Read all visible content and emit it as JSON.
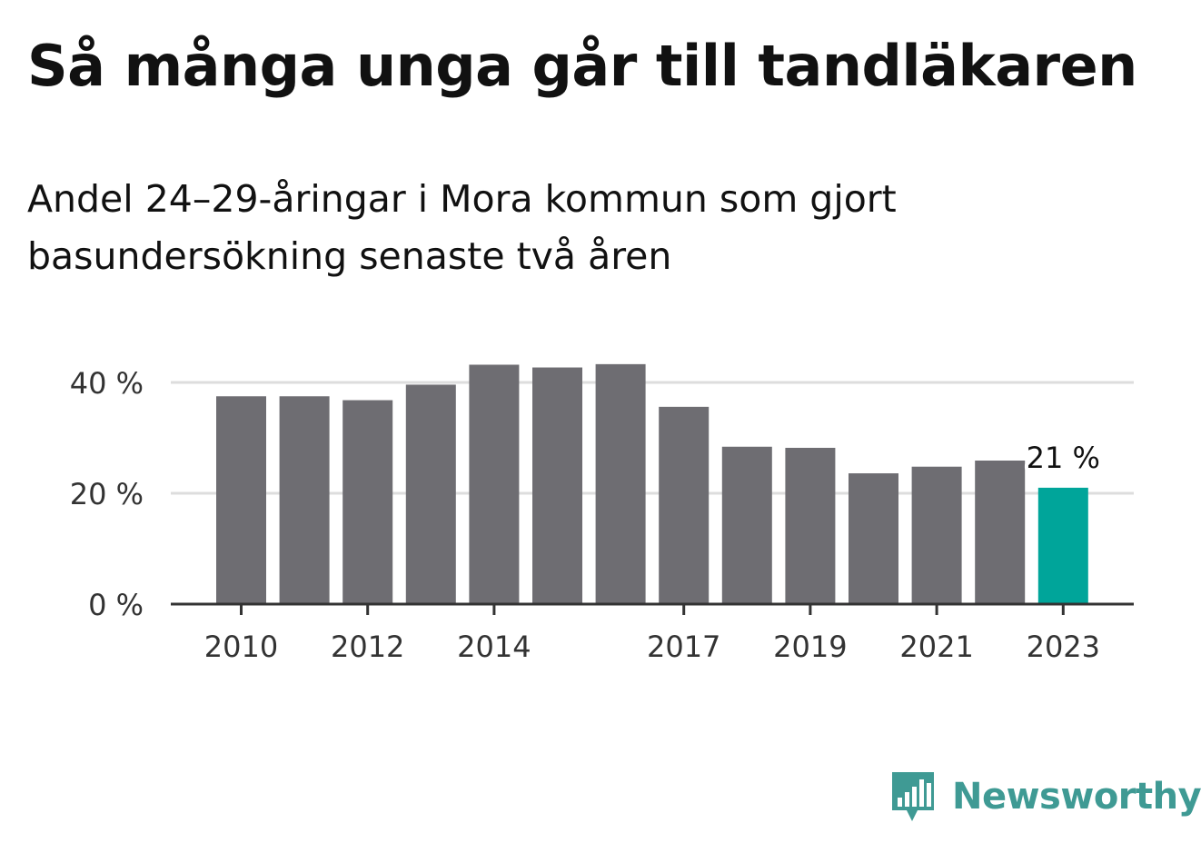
{
  "title": "Så många unga går till tandläkaren",
  "subtitle": "Andel 24–29-åringar i Mora kommun som gjort basundersökning senaste två åren",
  "brand": {
    "name": "Newsworthy",
    "color": "#3f9a94",
    "logo_icon": "newsworthy-bar-chart-bubble-icon"
  },
  "colors": {
    "bar": "#6e6d72",
    "highlight": "#00a59a",
    "grid": "#dddddd",
    "axis": "#333333"
  },
  "chart_data": {
    "type": "bar",
    "categories": [
      "2010",
      "2011",
      "2012",
      "2013",
      "2014",
      "2015",
      "2016",
      "2017",
      "2018",
      "2019",
      "2020",
      "2021",
      "2022",
      "2023"
    ],
    "values": [
      37.5,
      37.5,
      36.8,
      39.6,
      43.2,
      42.7,
      43.3,
      35.6,
      28.4,
      28.2,
      23.6,
      24.8,
      25.9,
      21
    ],
    "x_tick_labels": [
      "2010",
      "2012",
      "2014",
      "2017",
      "2019",
      "2021",
      "2023"
    ],
    "y_ticks": [
      0,
      20,
      40
    ],
    "y_tick_labels": [
      "0 %",
      "20 %",
      "40 %"
    ],
    "ylim": [
      0,
      45
    ],
    "highlight_category": "2023",
    "annotation": {
      "category": "2023",
      "text": "21 %"
    },
    "grid": true,
    "xlabel": "",
    "ylabel": ""
  }
}
